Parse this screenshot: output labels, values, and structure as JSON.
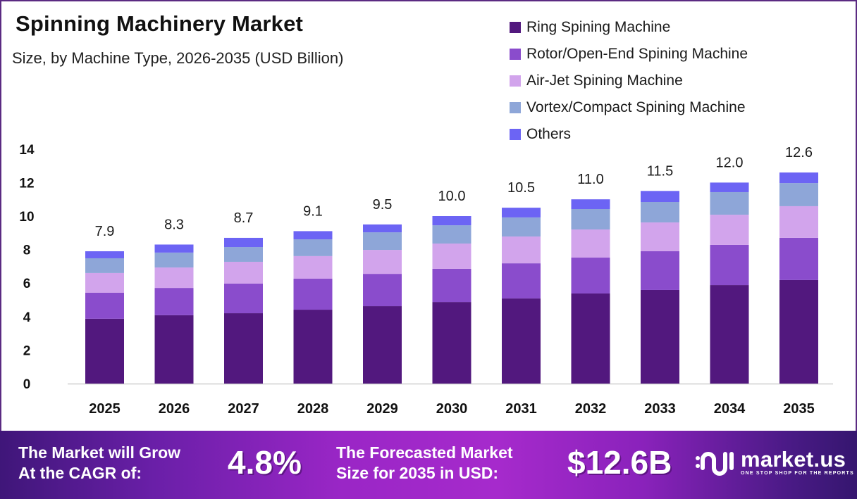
{
  "header": {
    "title": "Spinning Machinery Market",
    "subtitle": "Size, by Machine Type, 2026-2035 (USD Billion)"
  },
  "legend": [
    {
      "label": "Ring Spining Machine",
      "color": "#52187e"
    },
    {
      "label": "Rotor/Open-End Spining Machine",
      "color": "#8a4ccc"
    },
    {
      "label": "Air-Jet Spining Machine",
      "color": "#d2a4ec"
    },
    {
      "label": "Vortex/Compact Spining Machine",
      "color": "#8ea6d8"
    },
    {
      "label": "Others",
      "color": "#6c64f4"
    }
  ],
  "chart_data": {
    "type": "bar",
    "stacked": true,
    "title": "Spinning Machinery Market",
    "subtitle": "Size, by Machine Type, 2026-2035 (USD Billion)",
    "xlabel": "",
    "ylabel": "",
    "ylim": [
      0,
      14
    ],
    "yticks": [
      0,
      2,
      4,
      6,
      8,
      10,
      12,
      14
    ],
    "grid": false,
    "legend_position": "top-right",
    "categories": [
      "2025",
      "2026",
      "2027",
      "2028",
      "2029",
      "2030",
      "2031",
      "2032",
      "2033",
      "2034",
      "2035"
    ],
    "series": [
      {
        "name": "Ring Spining Machine",
        "color": "#52187e",
        "values": [
          3.87,
          4.08,
          4.2,
          4.41,
          4.62,
          4.87,
          5.08,
          5.38,
          5.59,
          5.88,
          6.18
        ]
      },
      {
        "name": "Rotor/Open-End Spining Machine",
        "color": "#8a4ccc",
        "values": [
          1.55,
          1.63,
          1.77,
          1.85,
          1.93,
          1.98,
          2.1,
          2.14,
          2.31,
          2.4,
          2.52
        ]
      },
      {
        "name": "Air-Jet Spining Machine",
        "color": "#d2a4ec",
        "values": [
          1.18,
          1.22,
          1.3,
          1.35,
          1.43,
          1.51,
          1.6,
          1.68,
          1.72,
          1.8,
          1.89
        ]
      },
      {
        "name": "Vortex/Compact Spining Machine",
        "color": "#8ea6d8",
        "values": [
          0.88,
          0.89,
          0.88,
          1.0,
          1.05,
          1.09,
          1.14,
          1.22,
          1.22,
          1.35,
          1.38
        ]
      },
      {
        "name": "Others",
        "color": "#6c64f4",
        "values": [
          0.42,
          0.48,
          0.55,
          0.49,
          0.47,
          0.55,
          0.58,
          0.58,
          0.66,
          0.57,
          0.63
        ]
      }
    ],
    "totals": [
      7.9,
      8.3,
      8.7,
      9.1,
      9.5,
      10.0,
      10.5,
      11.0,
      11.5,
      12.0,
      12.6
    ],
    "total_labels": [
      "7.9",
      "8.3",
      "8.7",
      "9.1",
      "9.5",
      "10.0",
      "10.5",
      "11.0",
      "11.5",
      "12.0",
      "12.6"
    ]
  },
  "footer": {
    "cagr_text_line1": "The Market will Grow",
    "cagr_text_line2": "At the CAGR of:",
    "cagr_value": "4.8%",
    "forecast_text_line1": "The Forecasted Market",
    "forecast_text_line2": "Size for 2035 in USD:",
    "forecast_value": "$12.6B",
    "brand_name": "market.us",
    "brand_tagline": "ONE STOP SHOP FOR THE REPORTS"
  },
  "colors": {
    "frame": "#5b2a82",
    "axis": "#cfcfcf"
  }
}
